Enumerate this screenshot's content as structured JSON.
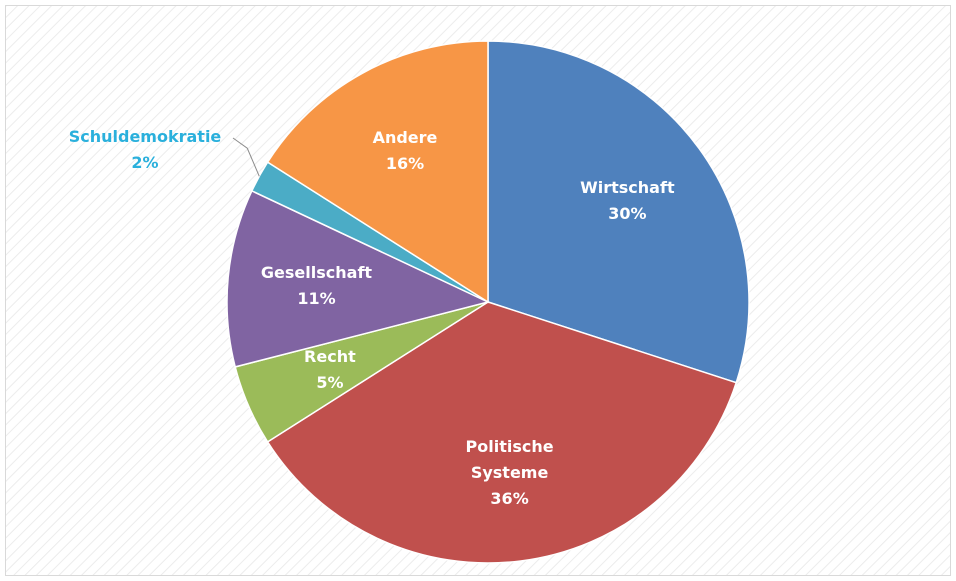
{
  "chart_data": {
    "type": "pie",
    "categories": [
      "Wirtschaft",
      "Politische Systeme",
      "Recht",
      "Gesellschaft",
      "Schuldemokratie",
      "Andere"
    ],
    "values": [
      30,
      36,
      5,
      11,
      2,
      16
    ],
    "value_labels": [
      "30%",
      "36%",
      "5%",
      "11%",
      "2%",
      "16%"
    ],
    "colors": [
      "#4f81bd",
      "#c0504d",
      "#9bbb59",
      "#8064a2",
      "#4bacc6",
      "#f79646"
    ]
  }
}
